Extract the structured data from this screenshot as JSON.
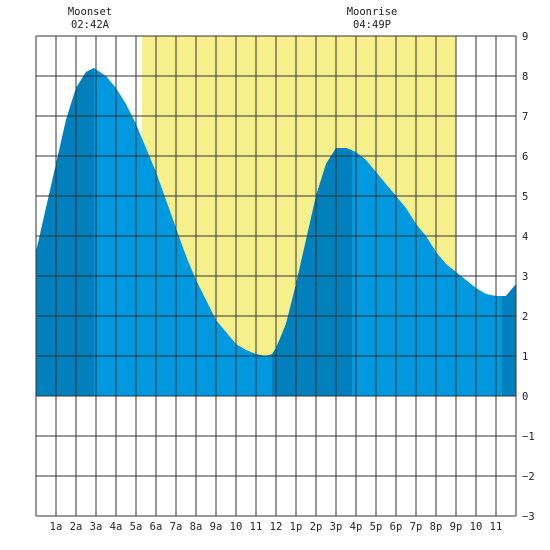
{
  "chart_data": {
    "type": "area",
    "title": "",
    "xlabel": "",
    "ylabel": "",
    "xlim": [
      0,
      24
    ],
    "ylim": [
      -3,
      9
    ],
    "yticks": [
      -3,
      -2,
      -1,
      0,
      1,
      2,
      3,
      4,
      5,
      6,
      7,
      8,
      9
    ],
    "xtick_labels": [
      "1a",
      "2a",
      "3a",
      "4a",
      "5a",
      "6a",
      "7a",
      "8a",
      "9a",
      "10",
      "11",
      "12",
      "1p",
      "2p",
      "3p",
      "4p",
      "5p",
      "6p",
      "7p",
      "8p",
      "9p",
      "10",
      "11"
    ],
    "grid": true,
    "daylight": {
      "start_hour": 5.3,
      "end_hour": 21.0,
      "color": "#f5f08c"
    },
    "colors": {
      "tide_fill": "#0099e0",
      "tide_dark": "#0080bc",
      "grid": "#333333",
      "background": "#ffffff"
    },
    "series": [
      {
        "x": [
          0,
          0.5,
          1,
          1.5,
          2,
          2.5,
          2.9,
          3.5,
          4,
          4.5,
          5,
          5.5,
          6,
          6.5,
          7,
          7.5,
          8,
          8.5,
          9,
          9.5,
          10,
          10.5,
          11,
          11.5,
          11.8,
          12,
          12.5,
          13,
          13.5,
          14,
          14.5,
          15,
          15.5,
          16,
          16.5,
          17,
          17.5,
          18,
          18.5,
          19,
          19.5,
          20,
          20.5,
          21,
          21.5,
          22,
          22.5,
          23,
          23.5,
          24
        ],
        "values": [
          3.6,
          4.7,
          5.8,
          6.9,
          7.7,
          8.1,
          8.2,
          8.0,
          7.7,
          7.3,
          6.8,
          6.2,
          5.6,
          4.9,
          4.2,
          3.5,
          2.9,
          2.4,
          1.9,
          1.6,
          1.3,
          1.15,
          1.05,
          1.0,
          1.05,
          1.2,
          1.8,
          2.8,
          3.9,
          5.0,
          5.8,
          6.2,
          6.2,
          6.1,
          5.9,
          5.6,
          5.3,
          5.0,
          4.7,
          4.3,
          4.0,
          3.6,
          3.3,
          3.1,
          2.9,
          2.7,
          2.55,
          2.5,
          2.5,
          2.8
        ]
      }
    ],
    "dark_bands": [
      [
        0,
        2.9
      ],
      [
        11.8,
        15.8
      ],
      [
        23.3,
        24
      ]
    ],
    "annotations": [
      {
        "kind": "Moonset",
        "time": "02:42A",
        "hour": 2.7
      },
      {
        "kind": "Moonrise",
        "time": "04:49P",
        "hour": 16.8
      }
    ]
  }
}
